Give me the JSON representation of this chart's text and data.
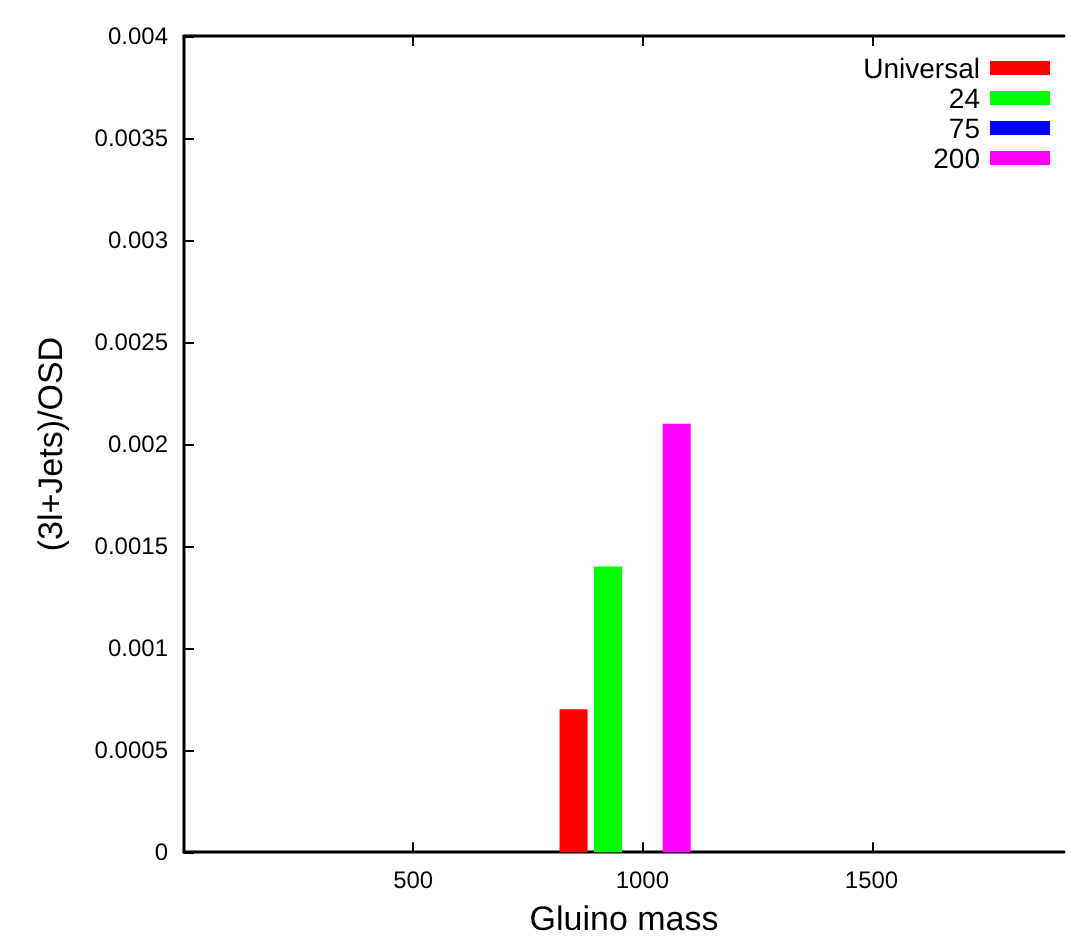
{
  "chart_data": {
    "type": "bar",
    "xlabel": "Gluino mass",
    "ylabel": "(3l+Jets)/OSD",
    "series": [
      {
        "name": "Universal",
        "color": "#ff0000",
        "x": [
          850
        ],
        "values": [
          0.0007
        ]
      },
      {
        "name": "24",
        "color": "#00ff00",
        "x": [
          925
        ],
        "values": [
          0.0014
        ]
      },
      {
        "name": "75",
        "color": "#0000ff",
        "x": [
          1000
        ],
        "values": [
          0
        ]
      },
      {
        "name": "200",
        "color": "#ff00ff",
        "x": [
          1075
        ],
        "values": [
          0.0021
        ]
      }
    ],
    "xlim": [
      0,
      1920
    ],
    "xticks": [
      500,
      1000,
      1500
    ],
    "ylim": [
      0,
      0.004
    ],
    "yticks": [
      0,
      0.0005,
      0.001,
      0.0015,
      0.002,
      0.0025,
      0.003,
      0.0035,
      0.004
    ],
    "grid": false,
    "legend": "top right"
  }
}
